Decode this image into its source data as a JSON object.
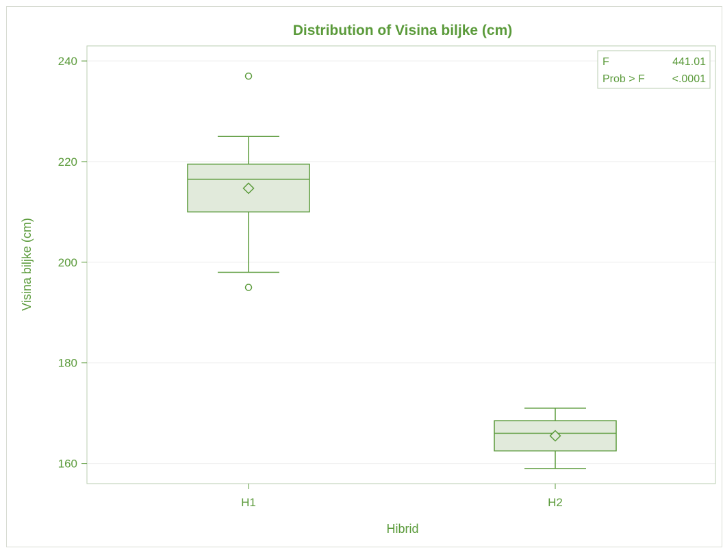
{
  "chart_data": {
    "type": "box",
    "title": "Distribution of Visina biljke (cm)",
    "xlabel": "Hibrid",
    "ylabel": "Visina biljke (cm)",
    "categories": [
      "H1",
      "H2"
    ],
    "ylim": [
      156,
      243
    ],
    "yticks": [
      160,
      180,
      200,
      220,
      240
    ],
    "grid": true,
    "boxes": [
      {
        "category": "H1",
        "whisker_low": 198,
        "q1": 210,
        "median": 216.5,
        "q3": 219.5,
        "whisker_high": 225,
        "mean": 214.7,
        "outliers": [
          237,
          195
        ]
      },
      {
        "category": "H2",
        "whisker_low": 159,
        "q1": 162.5,
        "median": 166,
        "q3": 168.5,
        "whisker_high": 171,
        "mean": 165.5,
        "outliers": []
      }
    ],
    "inset": {
      "rows": [
        {
          "label": "F",
          "value": "441.01"
        },
        {
          "label": "Prob > F",
          "value": "<.0001"
        }
      ]
    }
  },
  "colors": {
    "accent": "#5a9a3a",
    "box_fill": "#e1eadb",
    "grid": "#eeeeee",
    "axis": "#b9cdb0"
  }
}
